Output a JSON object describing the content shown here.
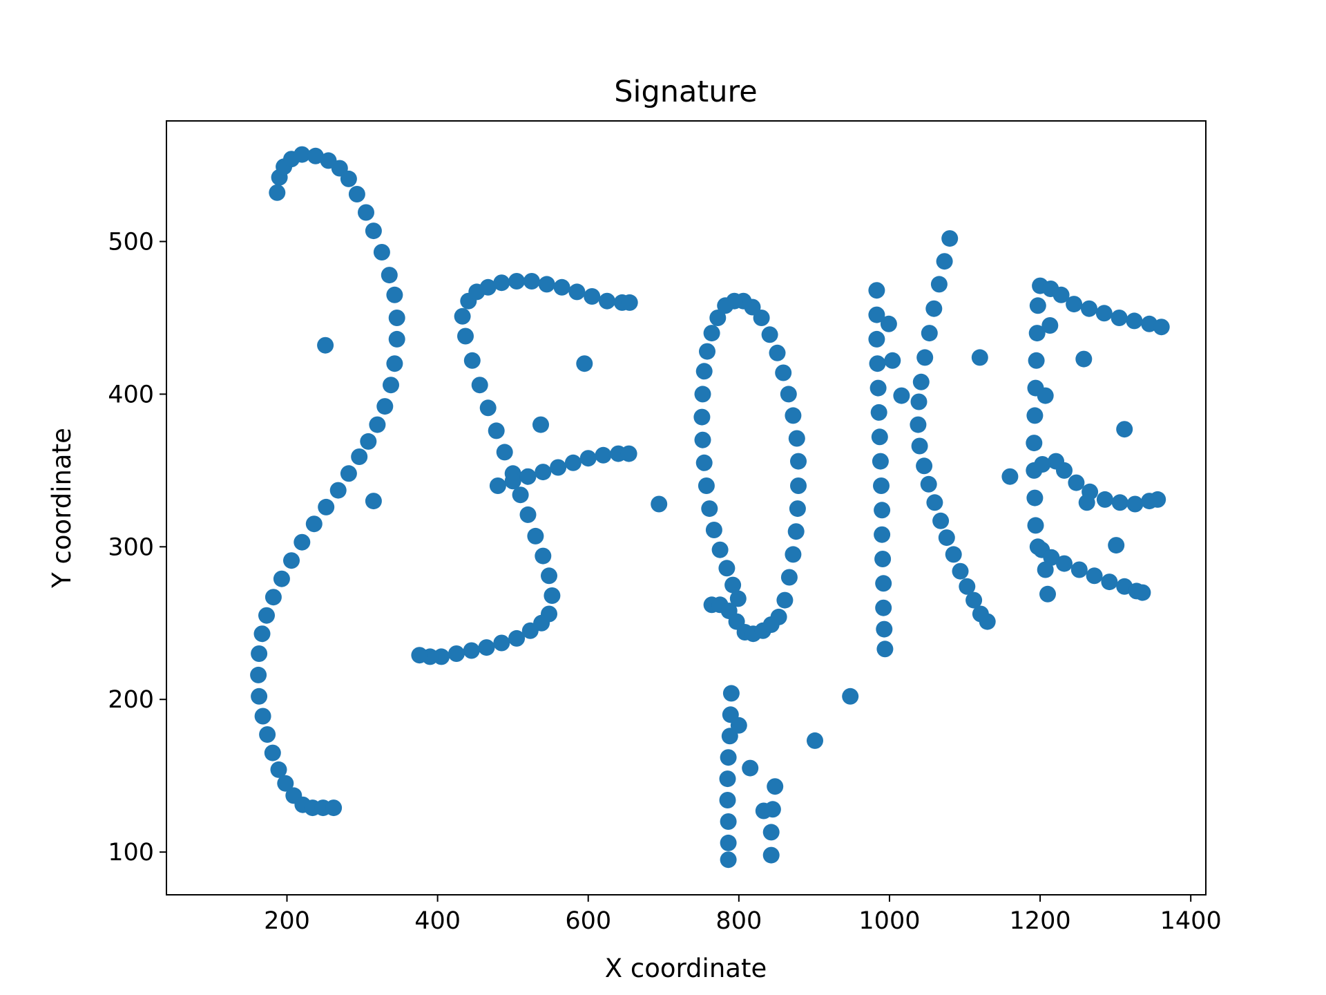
{
  "chart_data": {
    "type": "scatter",
    "title": "Signature",
    "xlabel": "X coordinate",
    "ylabel": "Y coordinate",
    "xlim": [
      40,
      1420
    ],
    "ylim": [
      72,
      579
    ],
    "xticks": [
      200,
      400,
      600,
      800,
      1000,
      1200,
      1400
    ],
    "yticks": [
      100,
      200,
      300,
      400,
      500
    ],
    "grid": false,
    "legend": "none",
    "point_color": "#1f77b4",
    "series": [
      {
        "points": [
          [
            187,
            532
          ],
          [
            190,
            542
          ],
          [
            196,
            549
          ],
          [
            206,
            554
          ],
          [
            220,
            557
          ],
          [
            238,
            556
          ],
          [
            255,
            553
          ],
          [
            270,
            548
          ],
          [
            282,
            541
          ],
          [
            293,
            531
          ],
          [
            305,
            519
          ],
          [
            315,
            507
          ],
          [
            326,
            493
          ],
          [
            336,
            478
          ],
          [
            343,
            465
          ],
          [
            346,
            450
          ],
          [
            346,
            436
          ],
          [
            343,
            420
          ],
          [
            338,
            406
          ],
          [
            330,
            392
          ],
          [
            320,
            380
          ],
          [
            308,
            369
          ],
          [
            296,
            359
          ],
          [
            282,
            348
          ],
          [
            268,
            337
          ],
          [
            252,
            326
          ],
          [
            236,
            315
          ],
          [
            220,
            303
          ],
          [
            206,
            291
          ],
          [
            193,
            279
          ],
          [
            182,
            267
          ],
          [
            173,
            255
          ],
          [
            167,
            243
          ],
          [
            163,
            230
          ],
          [
            162,
            216
          ],
          [
            163,
            202
          ],
          [
            168,
            189
          ],
          [
            174,
            177
          ],
          [
            181,
            165
          ],
          [
            189,
            154
          ],
          [
            198,
            145
          ],
          [
            209,
            137
          ],
          [
            221,
            131
          ],
          [
            234,
            129
          ],
          [
            248,
            129
          ],
          [
            262,
            129
          ],
          [
            251,
            432
          ],
          [
            315,
            330
          ]
        ]
      },
      {
        "points": [
          [
            433,
            451
          ],
          [
            441,
            461
          ],
          [
            452,
            467
          ],
          [
            467,
            470
          ],
          [
            485,
            473
          ],
          [
            505,
            474
          ],
          [
            525,
            474
          ],
          [
            545,
            472
          ],
          [
            565,
            470
          ],
          [
            585,
            467
          ],
          [
            605,
            464
          ],
          [
            625,
            461
          ],
          [
            645,
            460
          ],
          [
            655,
            460
          ],
          [
            437,
            438
          ],
          [
            446,
            422
          ],
          [
            456,
            406
          ],
          [
            467,
            391
          ],
          [
            478,
            376
          ],
          [
            489,
            362
          ],
          [
            500,
            348
          ],
          [
            510,
            334
          ],
          [
            520,
            321
          ],
          [
            530,
            307
          ],
          [
            540,
            294
          ],
          [
            548,
            281
          ],
          [
            552,
            268
          ],
          [
            548,
            256
          ],
          [
            538,
            250
          ],
          [
            523,
            245
          ],
          [
            505,
            240
          ],
          [
            485,
            237
          ],
          [
            465,
            234
          ],
          [
            445,
            232
          ],
          [
            425,
            230
          ],
          [
            405,
            228
          ],
          [
            390,
            228
          ],
          [
            376,
            229
          ],
          [
            480,
            340
          ],
          [
            500,
            343
          ],
          [
            520,
            346
          ],
          [
            540,
            349
          ],
          [
            560,
            352
          ],
          [
            580,
            355
          ],
          [
            600,
            358
          ],
          [
            620,
            360
          ],
          [
            640,
            361
          ],
          [
            654,
            361
          ],
          [
            595,
            420
          ],
          [
            537,
            380
          ],
          [
            694,
            328
          ]
        ]
      },
      {
        "points": [
          [
            764,
            262
          ],
          [
            775,
            262
          ],
          [
            787,
            258
          ],
          [
            797,
            251
          ],
          [
            808,
            244
          ],
          [
            819,
            243
          ],
          [
            832,
            245
          ],
          [
            843,
            249
          ],
          [
            853,
            254
          ],
          [
            861,
            265
          ],
          [
            867,
            280
          ],
          [
            872,
            295
          ],
          [
            876,
            310
          ],
          [
            878,
            325
          ],
          [
            879,
            340
          ],
          [
            879,
            356
          ],
          [
            877,
            371
          ],
          [
            872,
            386
          ],
          [
            866,
            400
          ],
          [
            859,
            414
          ],
          [
            851,
            427
          ],
          [
            841,
            439
          ],
          [
            830,
            450
          ],
          [
            818,
            457
          ],
          [
            806,
            461
          ],
          [
            794,
            461
          ],
          [
            782,
            458
          ],
          [
            772,
            450
          ],
          [
            764,
            440
          ],
          [
            758,
            428
          ],
          [
            754,
            415
          ],
          [
            752,
            400
          ],
          [
            751,
            385
          ],
          [
            752,
            370
          ],
          [
            754,
            355
          ],
          [
            757,
            340
          ],
          [
            761,
            325
          ],
          [
            767,
            311
          ],
          [
            775,
            298
          ],
          [
            784,
            286
          ],
          [
            792,
            275
          ],
          [
            799,
            266
          ],
          [
            790,
            204
          ],
          [
            789,
            190
          ],
          [
            788,
            176
          ],
          [
            786,
            162
          ],
          [
            785,
            148
          ],
          [
            785,
            134
          ],
          [
            786,
            120
          ],
          [
            786,
            106
          ],
          [
            786,
            95
          ],
          [
            800,
            183
          ],
          [
            815,
            155
          ],
          [
            833,
            127
          ],
          [
            848,
            143
          ],
          [
            845,
            128
          ],
          [
            843,
            113
          ],
          [
            843,
            98
          ],
          [
            901,
            173
          ],
          [
            948,
            202
          ]
        ]
      },
      {
        "points": [
          [
            983,
            468
          ],
          [
            983,
            452
          ],
          [
            983,
            436
          ],
          [
            984,
            420
          ],
          [
            985,
            404
          ],
          [
            986,
            388
          ],
          [
            987,
            372
          ],
          [
            988,
            356
          ],
          [
            989,
            340
          ],
          [
            990,
            324
          ],
          [
            990,
            308
          ],
          [
            991,
            292
          ],
          [
            992,
            276
          ],
          [
            992,
            260
          ],
          [
            993,
            246
          ],
          [
            994,
            233
          ],
          [
            1080,
            502
          ],
          [
            1073,
            487
          ],
          [
            1066,
            472
          ],
          [
            1059,
            456
          ],
          [
            1053,
            440
          ],
          [
            1047,
            424
          ],
          [
            1042,
            408
          ],
          [
            1039,
            395
          ],
          [
            1038,
            380
          ],
          [
            1040,
            366
          ],
          [
            1046,
            353
          ],
          [
            1052,
            341
          ],
          [
            1060,
            329
          ],
          [
            1068,
            317
          ],
          [
            1076,
            306
          ],
          [
            1085,
            295
          ],
          [
            1094,
            284
          ],
          [
            1103,
            274
          ],
          [
            1112,
            265
          ],
          [
            1121,
            256
          ],
          [
            1130,
            251
          ],
          [
            999,
            446
          ],
          [
            1004,
            422
          ],
          [
            1016,
            399
          ],
          [
            1120,
            424
          ],
          [
            1160,
            346
          ]
        ]
      },
      {
        "points": [
          [
            1200,
            471
          ],
          [
            1214,
            469
          ],
          [
            1228,
            465
          ],
          [
            1245,
            459
          ],
          [
            1265,
            456
          ],
          [
            1285,
            453
          ],
          [
            1305,
            450
          ],
          [
            1325,
            448
          ],
          [
            1345,
            446
          ],
          [
            1361,
            444
          ],
          [
            1197,
            458
          ],
          [
            1196,
            440
          ],
          [
            1195,
            422
          ],
          [
            1194,
            404
          ],
          [
            1193,
            386
          ],
          [
            1192,
            368
          ],
          [
            1192,
            350
          ],
          [
            1193,
            332
          ],
          [
            1194,
            314
          ],
          [
            1197,
            300
          ],
          [
            1202,
            298
          ],
          [
            1215,
            293
          ],
          [
            1232,
            289
          ],
          [
            1252,
            285
          ],
          [
            1272,
            281
          ],
          [
            1292,
            277
          ],
          [
            1312,
            274
          ],
          [
            1328,
            271
          ],
          [
            1336,
            270
          ],
          [
            1221,
            356
          ],
          [
            1232,
            350
          ],
          [
            1248,
            342
          ],
          [
            1266,
            336
          ],
          [
            1286,
            331
          ],
          [
            1306,
            329
          ],
          [
            1326,
            328
          ],
          [
            1345,
            330
          ],
          [
            1356,
            331
          ],
          [
            1213,
            445
          ],
          [
            1207,
            399
          ],
          [
            1203,
            354
          ],
          [
            1207,
            285
          ],
          [
            1210,
            269
          ],
          [
            1258,
            423
          ],
          [
            1262,
            329
          ],
          [
            1312,
            377
          ],
          [
            1301,
            301
          ]
        ]
      }
    ]
  }
}
